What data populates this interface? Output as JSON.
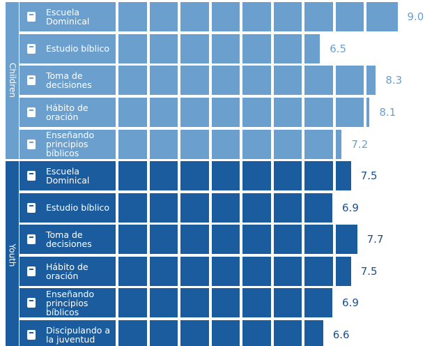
{
  "chart_data": {
    "type": "bar",
    "orientation": "horizontal",
    "xlim": [
      0,
      10
    ],
    "series": [
      {
        "name": "Children",
        "color": "#6b9fcd",
        "label_color": "#6b9fcd",
        "categories": [
          "Escuela Dominical",
          "Estudio bíblico",
          "Toma de decisiones",
          "Hábito de oración",
          "Enseñando principios bíblicos"
        ],
        "values": [
          9.0,
          6.5,
          8.3,
          8.1,
          7.2
        ],
        "value_labels": [
          "9.0",
          "6.5",
          "8.3",
          "8.1",
          "7.2"
        ]
      },
      {
        "name": "Youth",
        "color": "#1b5c9e",
        "label_color": "#1b4f8c",
        "categories": [
          "Escuela Dominical",
          "Estudio bíblico",
          "Toma de decisiones",
          "Hábito de oración",
          "Enseñando principios bíblicos",
          "Discipulando a la juventud"
        ],
        "values": [
          7.5,
          6.9,
          7.7,
          7.5,
          6.9,
          6.6
        ],
        "value_labels": [
          "7.5",
          "6.9",
          "7.7",
          "7.5",
          "6.9",
          "6.6"
        ]
      }
    ]
  }
}
